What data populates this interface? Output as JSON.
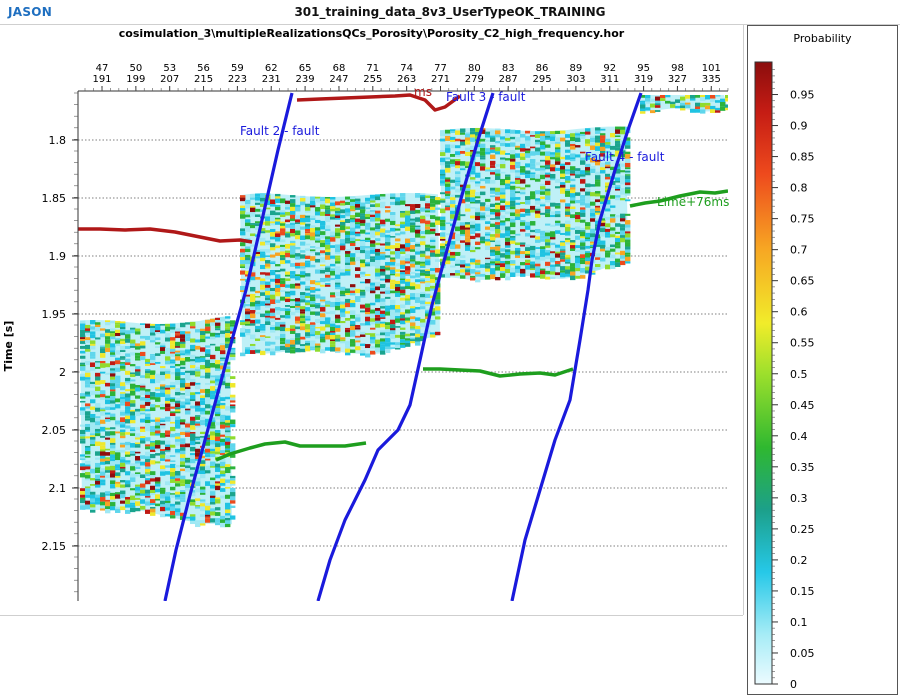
{
  "app": {
    "logo": "JASON",
    "window_title": "301_training_data_8v3_UserTypeOK_TRAINING"
  },
  "plot": {
    "title": "cosimulation_3\\multipleRealizationsQCs_Porosity\\Porosity_C2_high_frequency.hor",
    "y_axis_label": "Time [s]",
    "top_ticks": [
      {
        "a": "47",
        "b": "191"
      },
      {
        "a": "50",
        "b": "199"
      },
      {
        "a": "53",
        "b": "207"
      },
      {
        "a": "56",
        "b": "215"
      },
      {
        "a": "59",
        "b": "223"
      },
      {
        "a": "62",
        "b": "231"
      },
      {
        "a": "65",
        "b": "239"
      },
      {
        "a": "68",
        "b": "247"
      },
      {
        "a": "71",
        "b": "255"
      },
      {
        "a": "74",
        "b": "263"
      },
      {
        "a": "77",
        "b": "271"
      },
      {
        "a": "80",
        "b": "279"
      },
      {
        "a": "83",
        "b": "287"
      },
      {
        "a": "86",
        "b": "295"
      },
      {
        "a": "89",
        "b": "303"
      },
      {
        "a": "92",
        "b": "311"
      },
      {
        "a": "95",
        "b": "319"
      },
      {
        "a": "98",
        "b": "327"
      },
      {
        "a": "101",
        "b": "335"
      }
    ],
    "time_ticks": [
      "1.8",
      "1.85",
      "1.9",
      "1.95",
      "2",
      "2.05",
      "2.1",
      "2.15"
    ],
    "labels": {
      "fault2": "Fault 2 - fault",
      "fault3": "Fault 3 - fault",
      "fault4": "Fault 4 - fault",
      "lime": "Lime+76ms",
      "top_horizon_partial": "ms"
    }
  },
  "legend": {
    "title": "Probability",
    "ticks": [
      "0.95",
      "0.9",
      "0.85",
      "0.8",
      "0.75",
      "0.7",
      "0.65",
      "0.6",
      "0.55",
      "0.5",
      "0.45",
      "0.4",
      "0.35",
      "0.3",
      "0.25",
      "0.2",
      "0.15",
      "0.1",
      "0.05",
      "0"
    ]
  },
  "colors": {
    "fault": "#1a1adc",
    "horizon_red": "#b01818",
    "horizon_green": "#1e9e1e",
    "logo": "#1f6fc0"
  }
}
